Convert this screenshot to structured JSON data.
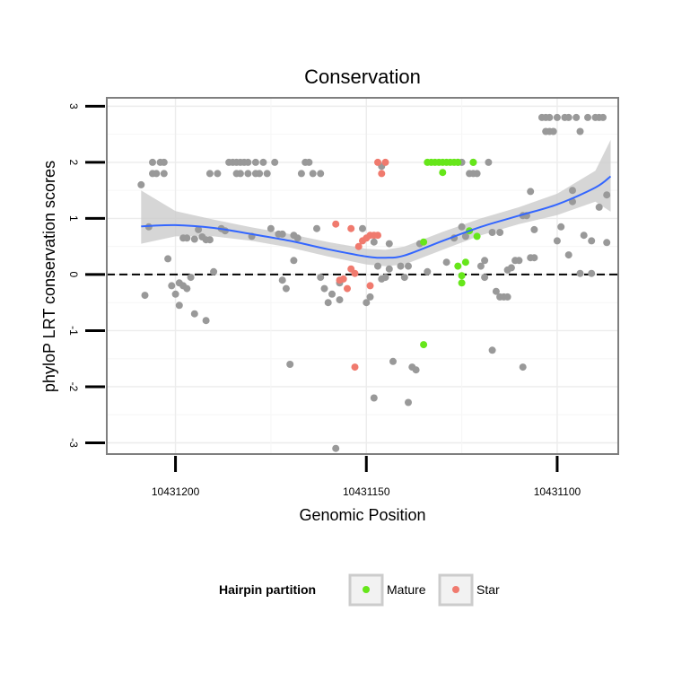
{
  "chart_data": {
    "type": "scatter",
    "title": "Conservation",
    "xlabel": "Genomic Position",
    "ylabel": "phyloP LRT conservation scores",
    "x_reversed": true,
    "xlim": [
      10431218,
      10431084
    ],
    "ylim": [
      -3.2,
      3.15
    ],
    "x_ticks": [
      10431200,
      10431150,
      10431100
    ],
    "x_tick_labels": [
      "10431200",
      "10431150",
      "10431100"
    ],
    "y_ticks": [
      3,
      2,
      1,
      0,
      -1,
      -2,
      -3
    ],
    "y_tick_labels": [
      "3",
      "2",
      "1",
      "0",
      "-1",
      "-2",
      "-3"
    ],
    "grid": true,
    "reference_line": {
      "y": 0,
      "style": "dashed",
      "color": "#000000"
    },
    "colors": {
      "Other": "#999999",
      "Mature": "#66e61a",
      "Star": "#f07a6e",
      "smooth": "#3366ff",
      "ribbon": "#cccccc",
      "panel_border": "#7f7f7f"
    },
    "legend": {
      "title": "Hairpin partition",
      "position": "bottom",
      "entries": [
        "Mature",
        "Star"
      ]
    },
    "series": [
      {
        "name": "Other",
        "points": [
          [
            10431209,
            1.6
          ],
          [
            10431208,
            -0.37
          ],
          [
            10431207,
            0.85
          ],
          [
            10431206,
            1.8
          ],
          [
            10431206,
            2.0
          ],
          [
            10431205,
            1.8
          ],
          [
            10431204,
            2.0
          ],
          [
            10431203,
            2.0
          ],
          [
            10431203,
            1.8
          ],
          [
            10431202,
            0.28
          ],
          [
            10431201,
            -0.2
          ],
          [
            10431200,
            -0.35
          ],
          [
            10431199,
            -0.15
          ],
          [
            10431199,
            -0.55
          ],
          [
            10431198,
            0.65
          ],
          [
            10431198,
            -0.2
          ],
          [
            10431197,
            0.65
          ],
          [
            10431197,
            -0.25
          ],
          [
            10431196,
            -0.05
          ],
          [
            10431195,
            0.63
          ],
          [
            10431195,
            -0.7
          ],
          [
            10431194,
            0.8
          ],
          [
            10431193,
            0.67
          ],
          [
            10431192,
            0.62
          ],
          [
            10431192,
            -0.82
          ],
          [
            10431191,
            1.8
          ],
          [
            10431191,
            0.62
          ],
          [
            10431190,
            0.05
          ],
          [
            10431189,
            1.8
          ],
          [
            10431188,
            0.82
          ],
          [
            10431187,
            0.78
          ],
          [
            10431186,
            2.0
          ],
          [
            10431185,
            2.0
          ],
          [
            10431184,
            1.8
          ],
          [
            10431184,
            2.0
          ],
          [
            10431183,
            2.0
          ],
          [
            10431183,
            1.8
          ],
          [
            10431182,
            2.0
          ],
          [
            10431181,
            1.8
          ],
          [
            10431181,
            2.0
          ],
          [
            10431180,
            0.68
          ],
          [
            10431179,
            1.8
          ],
          [
            10431179,
            2.0
          ],
          [
            10431178,
            1.8
          ],
          [
            10431177,
            2.0
          ],
          [
            10431176,
            1.8
          ],
          [
            10431175,
            0.82
          ],
          [
            10431174,
            2.0
          ],
          [
            10431173,
            0.72
          ],
          [
            10431172,
            -0.1
          ],
          [
            10431172,
            0.72
          ],
          [
            10431171,
            -0.25
          ],
          [
            10431170,
            -1.6
          ],
          [
            10431169,
            0.7
          ],
          [
            10431169,
            0.25
          ],
          [
            10431168,
            0.65
          ],
          [
            10431167,
            1.8
          ],
          [
            10431166,
            2.0
          ],
          [
            10431165,
            2.0
          ],
          [
            10431164,
            1.8
          ],
          [
            10431163,
            0.82
          ],
          [
            10431162,
            -0.05
          ],
          [
            10431162,
            1.8
          ],
          [
            10431161,
            -0.25
          ],
          [
            10431160,
            -0.5
          ],
          [
            10431159,
            -0.35
          ],
          [
            10431158,
            -3.1
          ],
          [
            10431157,
            -0.15
          ],
          [
            10431157,
            -0.45
          ],
          [
            10431151,
            0.82
          ],
          [
            10431150,
            -0.5
          ],
          [
            10431149,
            -0.4
          ],
          [
            10431148,
            -2.2
          ],
          [
            10431148,
            0.58
          ],
          [
            10431147,
            0.15
          ],
          [
            10431146,
            1.93
          ],
          [
            10431145,
            -0.05
          ],
          [
            10431144,
            0.55
          ],
          [
            10431144,
            0.1
          ],
          [
            10431143,
            -1.55
          ],
          [
            10431141,
            0.15
          ],
          [
            10431140,
            -0.05
          ],
          [
            10431139,
            -2.28
          ],
          [
            10431139,
            0.15
          ],
          [
            10431138,
            -1.65
          ],
          [
            10431137,
            -1.7
          ],
          [
            10431136,
            0.55
          ],
          [
            10431134,
            0.05
          ],
          [
            10431129,
            0.22
          ],
          [
            10431127,
            0.65
          ],
          [
            10431126,
            2.0
          ],
          [
            10431125,
            2.0
          ],
          [
            10431125,
            0.85
          ],
          [
            10431124,
            0.68
          ],
          [
            10431123,
            1.8
          ],
          [
            10431122,
            1.8
          ],
          [
            10431122,
            2.0
          ],
          [
            10431121,
            1.8
          ],
          [
            10431120,
            0.15
          ],
          [
            10431119,
            -0.05
          ],
          [
            10431119,
            0.25
          ],
          [
            10431118,
            2.0
          ],
          [
            10431117,
            -1.35
          ],
          [
            10431117,
            0.75
          ],
          [
            10431116,
            -0.3
          ],
          [
            10431115,
            -0.4
          ],
          [
            10431115,
            0.75
          ],
          [
            10431114,
            -0.4
          ],
          [
            10431113,
            -0.4
          ],
          [
            10431113,
            0.08
          ],
          [
            10431112,
            0.12
          ],
          [
            10431111,
            0.25
          ],
          [
            10431110,
            0.25
          ],
          [
            10431109,
            -1.65
          ],
          [
            10431109,
            1.05
          ],
          [
            10431108,
            1.05
          ],
          [
            10431107,
            1.48
          ],
          [
            10431107,
            0.3
          ],
          [
            10431106,
            0.8
          ],
          [
            10431106,
            0.3
          ],
          [
            10431104,
            2.8
          ],
          [
            10431103,
            2.8
          ],
          [
            10431103,
            2.55
          ],
          [
            10431102,
            2.8
          ],
          [
            10431102,
            2.55
          ],
          [
            10431101,
            2.55
          ],
          [
            10431100,
            2.8
          ],
          [
            10431100,
            0.6
          ],
          [
            10431099,
            0.85
          ],
          [
            10431098,
            2.8
          ],
          [
            10431097,
            2.8
          ],
          [
            10431097,
            0.35
          ],
          [
            10431096,
            1.5
          ],
          [
            10431096,
            1.3
          ],
          [
            10431095,
            2.8
          ],
          [
            10431094,
            2.55
          ],
          [
            10431093,
            0.7
          ],
          [
            10431092,
            2.8
          ],
          [
            10431091,
            0.6
          ],
          [
            10431090,
            2.8
          ],
          [
            10431089,
            1.2
          ],
          [
            10431089,
            2.8
          ],
          [
            10431088,
            2.8
          ],
          [
            10431087,
            1.42
          ],
          [
            10431087,
            0.57
          ],
          [
            10431091,
            0.02
          ],
          [
            10431094,
            0.02
          ],
          [
            10431146,
            -0.08
          ]
        ]
      },
      {
        "name": "Mature",
        "points": [
          [
            10431135,
            -1.25
          ],
          [
            10431135,
            0.58
          ],
          [
            10431134,
            2.0
          ],
          [
            10431133,
            2.0
          ],
          [
            10431132,
            2.0
          ],
          [
            10431131,
            2.0
          ],
          [
            10431130,
            2.0
          ],
          [
            10431130,
            1.82
          ],
          [
            10431129,
            2.0
          ],
          [
            10431128,
            2.0
          ],
          [
            10431127,
            2.0
          ],
          [
            10431126,
            2.0
          ],
          [
            10431126,
            0.15
          ],
          [
            10431125,
            -0.15
          ],
          [
            10431125,
            -0.02
          ],
          [
            10431124,
            0.22
          ],
          [
            10431123,
            0.78
          ],
          [
            10431122,
            2.0
          ],
          [
            10431121,
            0.68
          ]
        ]
      },
      {
        "name": "Star",
        "points": [
          [
            10431158,
            0.9
          ],
          [
            10431157,
            -0.1
          ],
          [
            10431156,
            -0.08
          ],
          [
            10431155,
            -0.25
          ],
          [
            10431154,
            0.1
          ],
          [
            10431154,
            0.82
          ],
          [
            10431153,
            -1.65
          ],
          [
            10431153,
            0.02
          ],
          [
            10431152,
            0.5
          ],
          [
            10431151,
            0.6
          ],
          [
            10431150,
            0.65
          ],
          [
            10431149,
            -0.2
          ],
          [
            10431149,
            0.7
          ],
          [
            10431148,
            0.7
          ],
          [
            10431147,
            2.0
          ],
          [
            10431147,
            0.7
          ],
          [
            10431146,
            1.8
          ],
          [
            10431145,
            2.0
          ]
        ]
      }
    ],
    "smooth": {
      "x": [
        10431209,
        10431200,
        10431190,
        10431180,
        10431170,
        10431160,
        10431150,
        10431145,
        10431140,
        10431130,
        10431120,
        10431110,
        10431100,
        10431090,
        10431086
      ],
      "y": [
        0.86,
        0.88,
        0.83,
        0.72,
        0.6,
        0.45,
        0.32,
        0.3,
        0.34,
        0.6,
        0.85,
        1.05,
        1.25,
        1.55,
        1.75
      ],
      "ymin": [
        0.55,
        0.68,
        0.68,
        0.6,
        0.48,
        0.32,
        0.18,
        0.15,
        0.18,
        0.44,
        0.7,
        0.9,
        1.06,
        1.3,
        1.12
      ],
      "ymax": [
        1.5,
        1.13,
        0.98,
        0.84,
        0.72,
        0.58,
        0.46,
        0.44,
        0.5,
        0.76,
        1.0,
        1.2,
        1.44,
        1.85,
        2.4
      ]
    }
  }
}
